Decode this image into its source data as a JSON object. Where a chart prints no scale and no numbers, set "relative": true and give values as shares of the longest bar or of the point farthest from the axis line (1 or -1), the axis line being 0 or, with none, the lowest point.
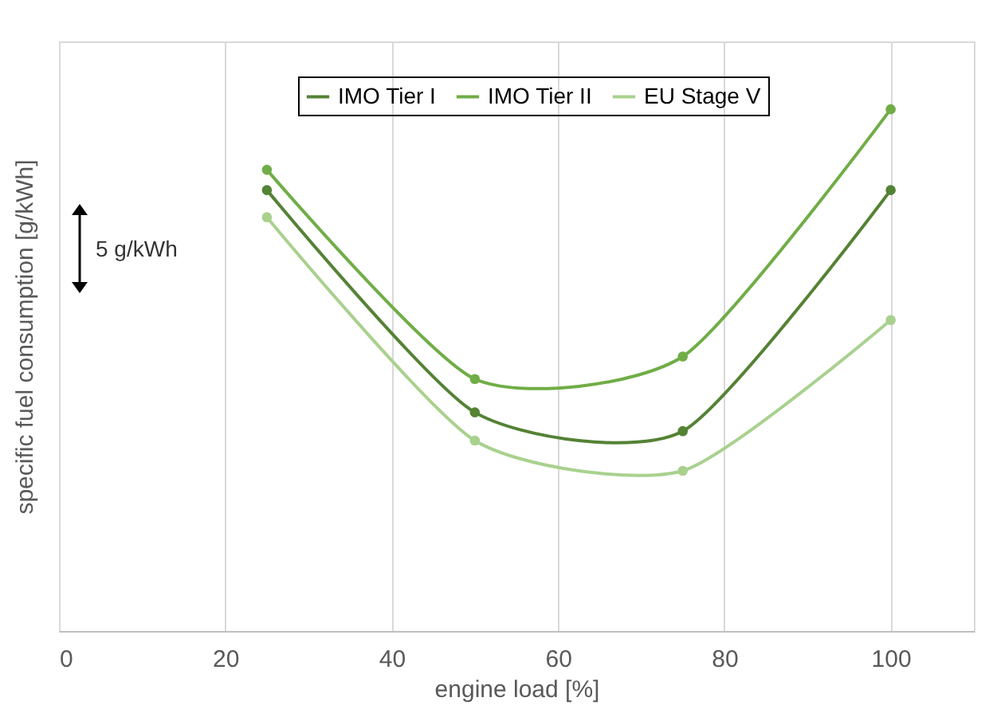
{
  "chart_data": {
    "type": "line",
    "relative": true,
    "xlabel": "engine load [%]",
    "ylabel": "specific fuel consumption [g/kWh]",
    "x": [
      25,
      50,
      75,
      100
    ],
    "xlim": [
      0,
      110
    ],
    "xticks": [
      0,
      20,
      40,
      60,
      80,
      100
    ],
    "series": [
      {
        "name": "IMO Tier I",
        "color": "#548235",
        "values": [
          0.845,
          0.419,
          0.383,
          0.845
        ]
      },
      {
        "name": "IMO Tier II",
        "color": "#70ad47",
        "values": [
          0.884,
          0.483,
          0.526,
          1
        ]
      },
      {
        "name": "EU Stage V",
        "color": "#a9d18e",
        "values": [
          0.793,
          0.365,
          0.307,
          0.596
        ]
      }
    ],
    "annotations": [
      "5 g/kWh"
    ],
    "grid": "x",
    "legend": "top",
    "marker": "circle",
    "line_style": "solid"
  }
}
